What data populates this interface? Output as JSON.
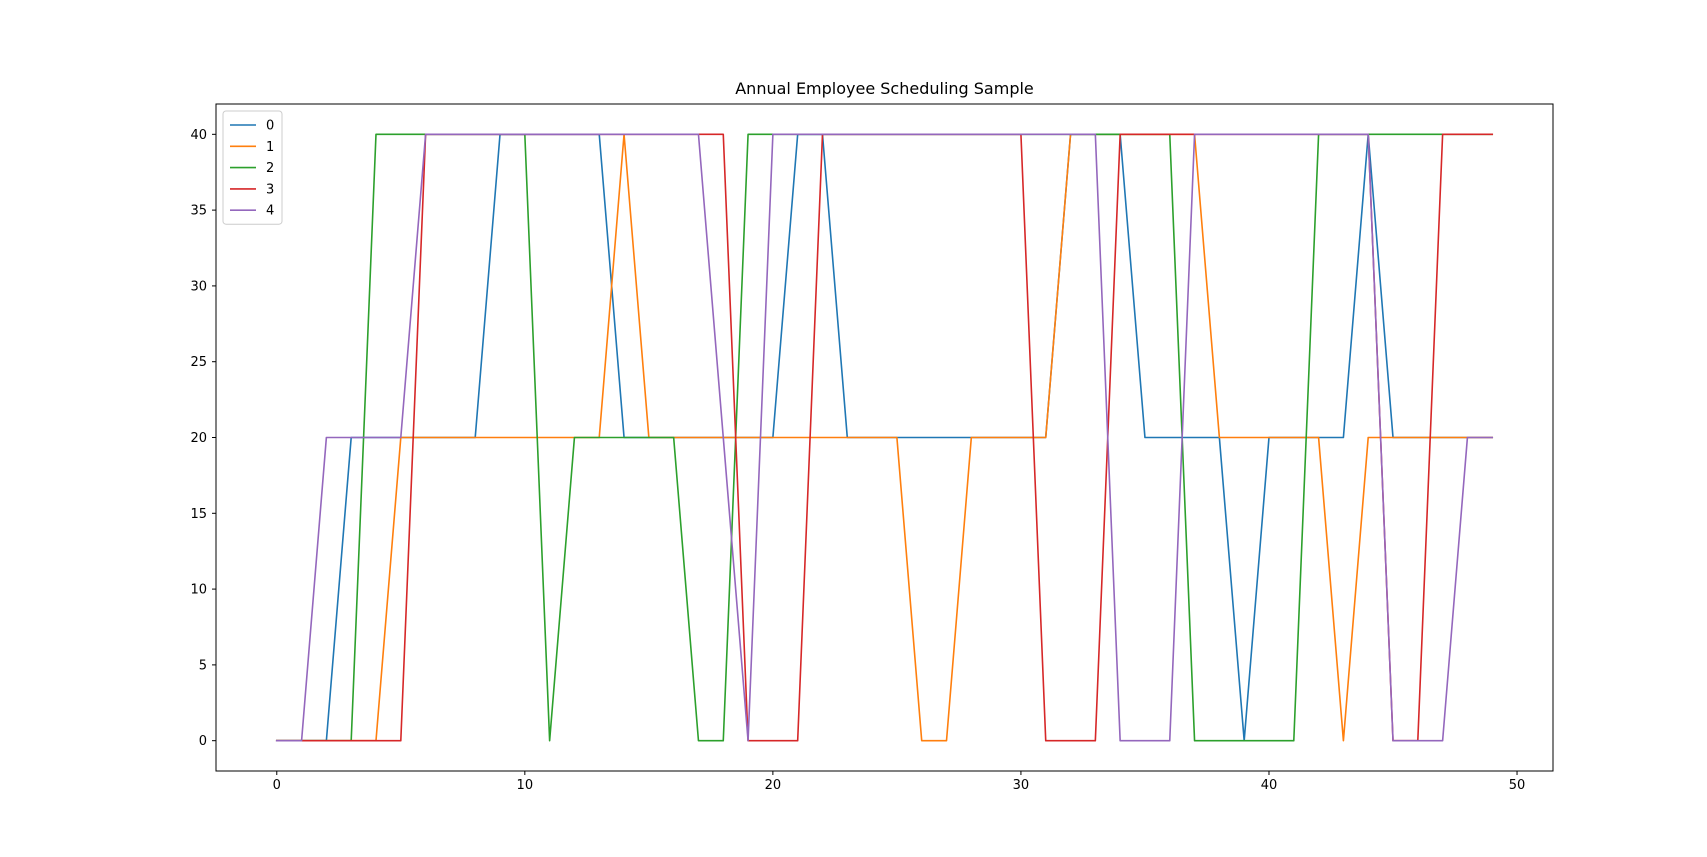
{
  "chart_data": {
    "type": "line",
    "title": "Annual Employee Scheduling Sample",
    "xlabel": "",
    "ylabel": "",
    "xlim": [
      -2.45,
      51.45
    ],
    "ylim": [
      -2,
      42
    ],
    "xticks": [
      0,
      10,
      20,
      30,
      40,
      50
    ],
    "yticks": [
      0,
      5,
      10,
      15,
      20,
      25,
      30,
      35,
      40
    ],
    "grid": false,
    "legend": "top-left",
    "x": [
      0,
      1,
      2,
      3,
      4,
      5,
      6,
      7,
      8,
      9,
      10,
      11,
      12,
      13,
      14,
      15,
      16,
      17,
      18,
      19,
      20,
      21,
      22,
      23,
      24,
      25,
      26,
      27,
      28,
      29,
      30,
      31,
      32,
      33,
      34,
      35,
      36,
      37,
      38,
      39,
      40,
      41,
      42,
      43,
      44,
      45,
      46,
      47,
      48,
      49
    ],
    "series": [
      {
        "name": "0",
        "color": "#1f77b4",
        "values": [
          0,
          0,
          0,
          20,
          20,
          20,
          20,
          20,
          20,
          40,
          40,
          40,
          40,
          40,
          20,
          20,
          20,
          20,
          20,
          20,
          20,
          40,
          40,
          20,
          20,
          20,
          20,
          20,
          20,
          20,
          20,
          20,
          40,
          40,
          40,
          20,
          20,
          20,
          20,
          0,
          20,
          20,
          20,
          20,
          40,
          20,
          20,
          20,
          20,
          20
        ]
      },
      {
        "name": "1",
        "color": "#ff7f0e",
        "values": [
          0,
          0,
          0,
          0,
          0,
          20,
          20,
          20,
          20,
          20,
          20,
          20,
          20,
          20,
          40,
          20,
          20,
          20,
          20,
          20,
          20,
          20,
          20,
          20,
          20,
          20,
          0,
          0,
          20,
          20,
          20,
          20,
          40,
          40,
          40,
          40,
          40,
          40,
          20,
          20,
          20,
          20,
          20,
          0,
          20,
          20,
          20,
          20,
          20,
          20
        ]
      },
      {
        "name": "2",
        "color": "#2ca02c",
        "values": [
          0,
          0,
          0,
          0,
          40,
          40,
          40,
          40,
          40,
          40,
          40,
          0,
          20,
          20,
          20,
          20,
          20,
          0,
          0,
          40,
          40,
          40,
          40,
          40,
          40,
          40,
          40,
          40,
          40,
          40,
          40,
          40,
          40,
          40,
          40,
          40,
          40,
          0,
          0,
          0,
          0,
          0,
          40,
          40,
          40,
          40,
          40,
          40,
          40,
          40
        ]
      },
      {
        "name": "3",
        "color": "#d62728",
        "values": [
          0,
          0,
          0,
          0,
          0,
          0,
          40,
          40,
          40,
          40,
          40,
          40,
          40,
          40,
          40,
          40,
          40,
          40,
          40,
          0,
          0,
          0,
          40,
          40,
          40,
          40,
          40,
          40,
          40,
          40,
          40,
          0,
          0,
          0,
          40,
          40,
          40,
          40,
          40,
          40,
          40,
          40,
          40,
          40,
          40,
          0,
          0,
          40,
          40,
          40
        ]
      },
      {
        "name": "4",
        "color": "#9467bd",
        "values": [
          0,
          0,
          20,
          20,
          20,
          20,
          40,
          40,
          40,
          40,
          40,
          40,
          40,
          40,
          40,
          40,
          40,
          40,
          20,
          0,
          40,
          40,
          40,
          40,
          40,
          40,
          40,
          40,
          40,
          40,
          40,
          40,
          40,
          40,
          0,
          0,
          0,
          40,
          40,
          40,
          40,
          40,
          40,
          40,
          40,
          0,
          0,
          0,
          20,
          20
        ]
      }
    ]
  }
}
